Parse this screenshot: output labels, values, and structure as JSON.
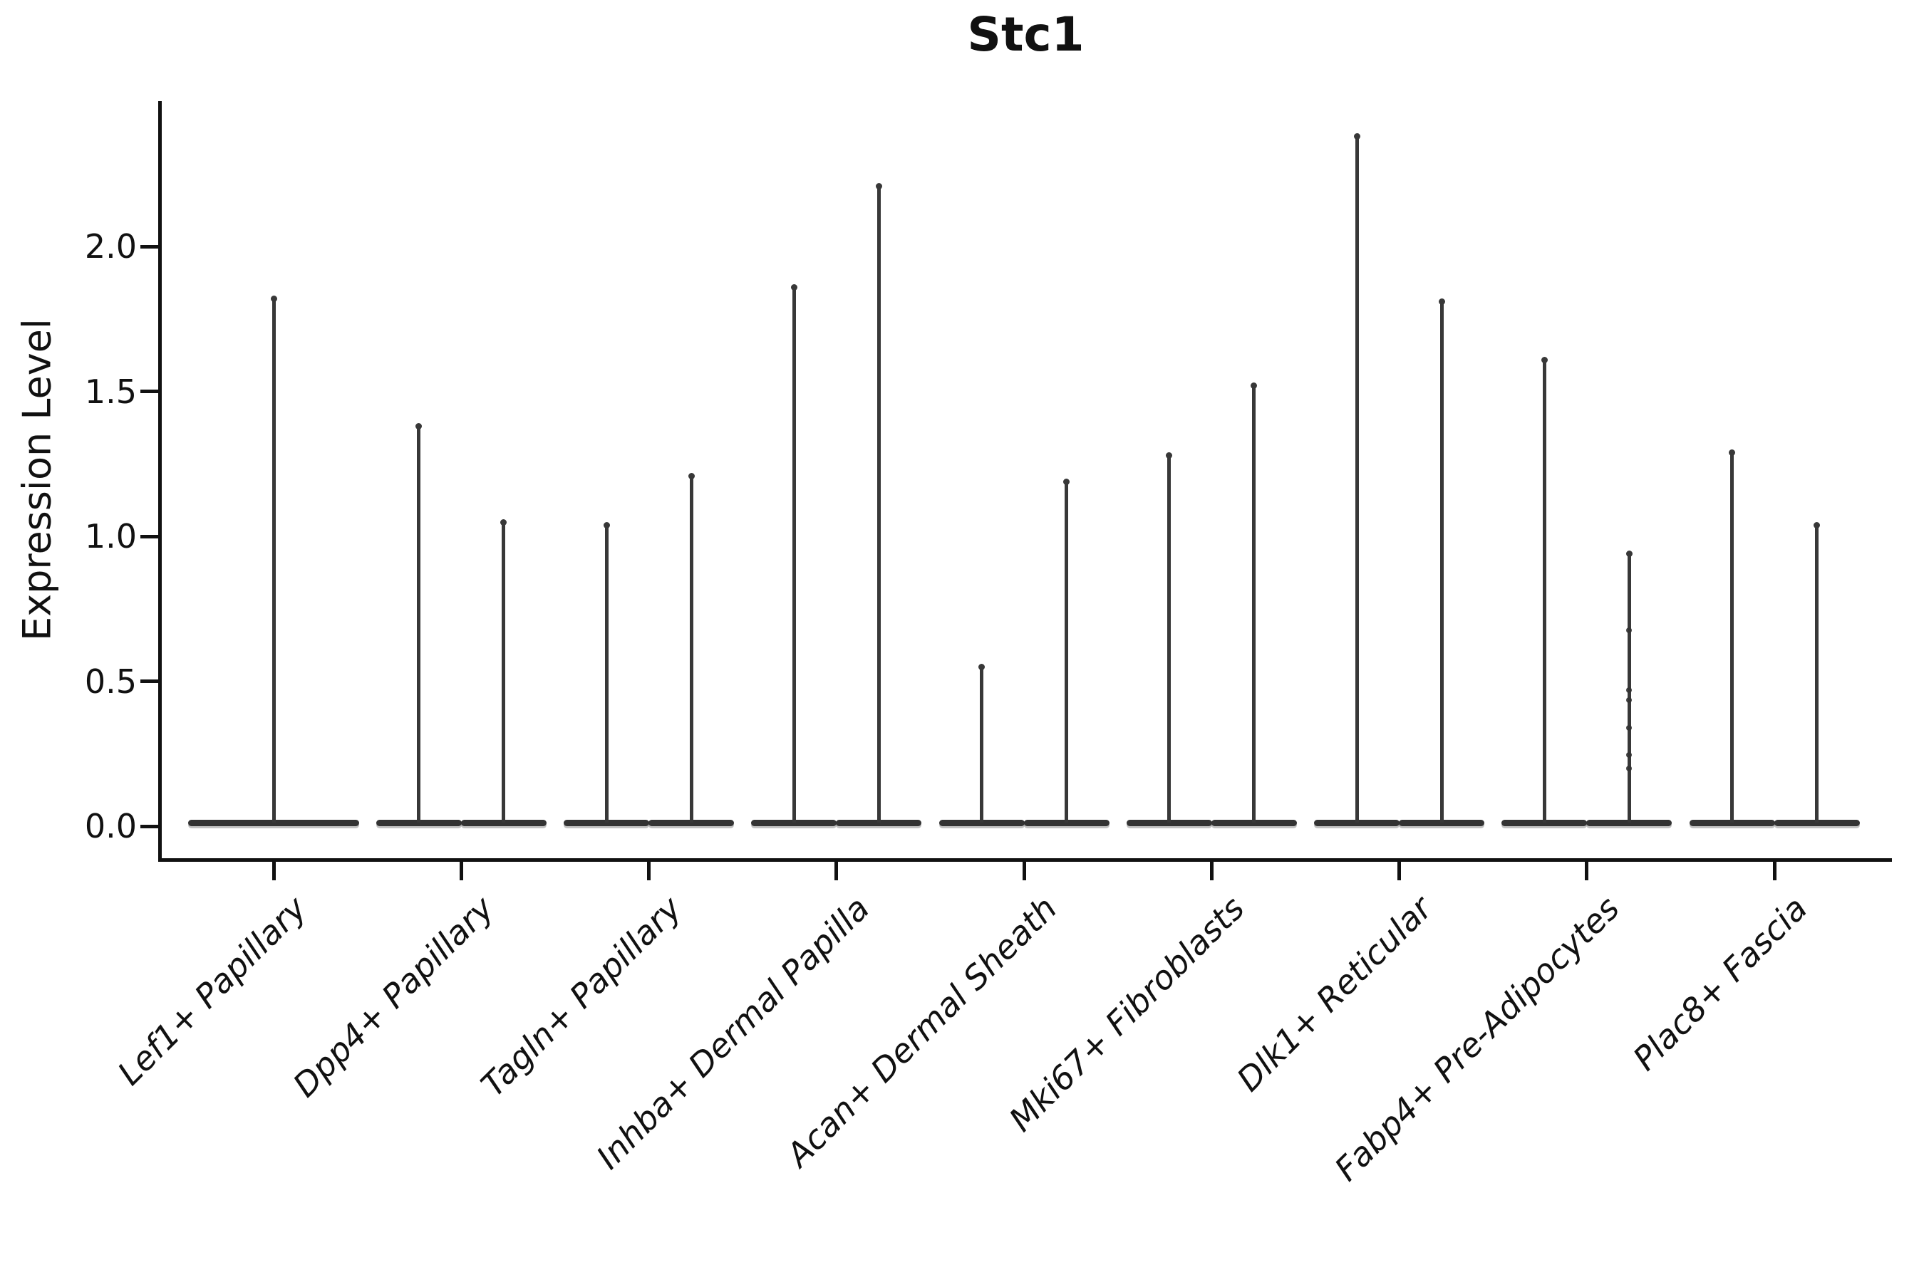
{
  "chart_data": {
    "type": "violin",
    "title": "Stc1",
    "ylabel": "Expression Level",
    "xlabel": "",
    "ylim": [
      -0.12,
      2.5
    ],
    "yticks": [
      0.0,
      0.5,
      1.0,
      1.5,
      2.0
    ],
    "grid": false,
    "legend": null,
    "categories": [
      "Lef1+ Papillary",
      "Dpp4+ Papillary",
      "Tagln+ Papillary",
      "Inhba+ Dermal Papilla",
      "Acan+ Dermal Sheath",
      "Mki67+ Fibroblasts",
      "Dlk1+ Reticular",
      "Fabp4+ Pre-Adipocytes",
      "Plac8+ Fascia"
    ],
    "violins": [
      {
        "category": "Lef1+ Papillary",
        "side": "single",
        "baseline": 0.0,
        "max": 1.82
      },
      {
        "category": "Dpp4+ Papillary",
        "side": "left",
        "baseline": 0.0,
        "max": 1.38
      },
      {
        "category": "Dpp4+ Papillary",
        "side": "right",
        "baseline": 0.0,
        "max": 1.05
      },
      {
        "category": "Tagln+ Papillary",
        "side": "left",
        "baseline": 0.0,
        "max": 1.04
      },
      {
        "category": "Tagln+ Papillary",
        "side": "right",
        "baseline": 0.0,
        "max": 1.21
      },
      {
        "category": "Inhba+ Dermal Papilla",
        "side": "left",
        "baseline": 0.0,
        "max": 1.86
      },
      {
        "category": "Inhba+ Dermal Papilla",
        "side": "right",
        "baseline": 0.0,
        "max": 2.21
      },
      {
        "category": "Acan+ Dermal Sheath",
        "side": "left",
        "baseline": 0.0,
        "max": 0.55
      },
      {
        "category": "Acan+ Dermal Sheath",
        "side": "right",
        "baseline": 0.0,
        "max": 1.19
      },
      {
        "category": "Mki67+ Fibroblasts",
        "side": "left",
        "baseline": 0.0,
        "max": 1.28
      },
      {
        "category": "Mki67+ Fibroblasts",
        "side": "right",
        "baseline": 0.0,
        "max": 1.52
      },
      {
        "category": "Dlk1+ Reticular",
        "side": "left",
        "baseline": 0.0,
        "max": 2.38
      },
      {
        "category": "Dlk1+ Reticular",
        "side": "right",
        "baseline": 0.0,
        "max": 1.81
      },
      {
        "category": "Fabp4+ Pre-Adipocytes",
        "side": "left",
        "baseline": 0.0,
        "max": 1.61
      },
      {
        "category": "Fabp4+ Pre-Adipocytes",
        "side": "right",
        "baseline": 0.0,
        "max": 0.94,
        "points": [
          0.2,
          0.245,
          0.34,
          0.435,
          0.47,
          0.675
        ]
      },
      {
        "category": "Plac8+ Fascia",
        "side": "left",
        "baseline": 0.0,
        "max": 1.29
      },
      {
        "category": "Plac8+ Fascia",
        "side": "right",
        "baseline": 0.0,
        "max": 1.04
      }
    ],
    "colors": {
      "violin_stroke": "#383838",
      "axis": "#111111",
      "background": "#ffffff"
    }
  }
}
